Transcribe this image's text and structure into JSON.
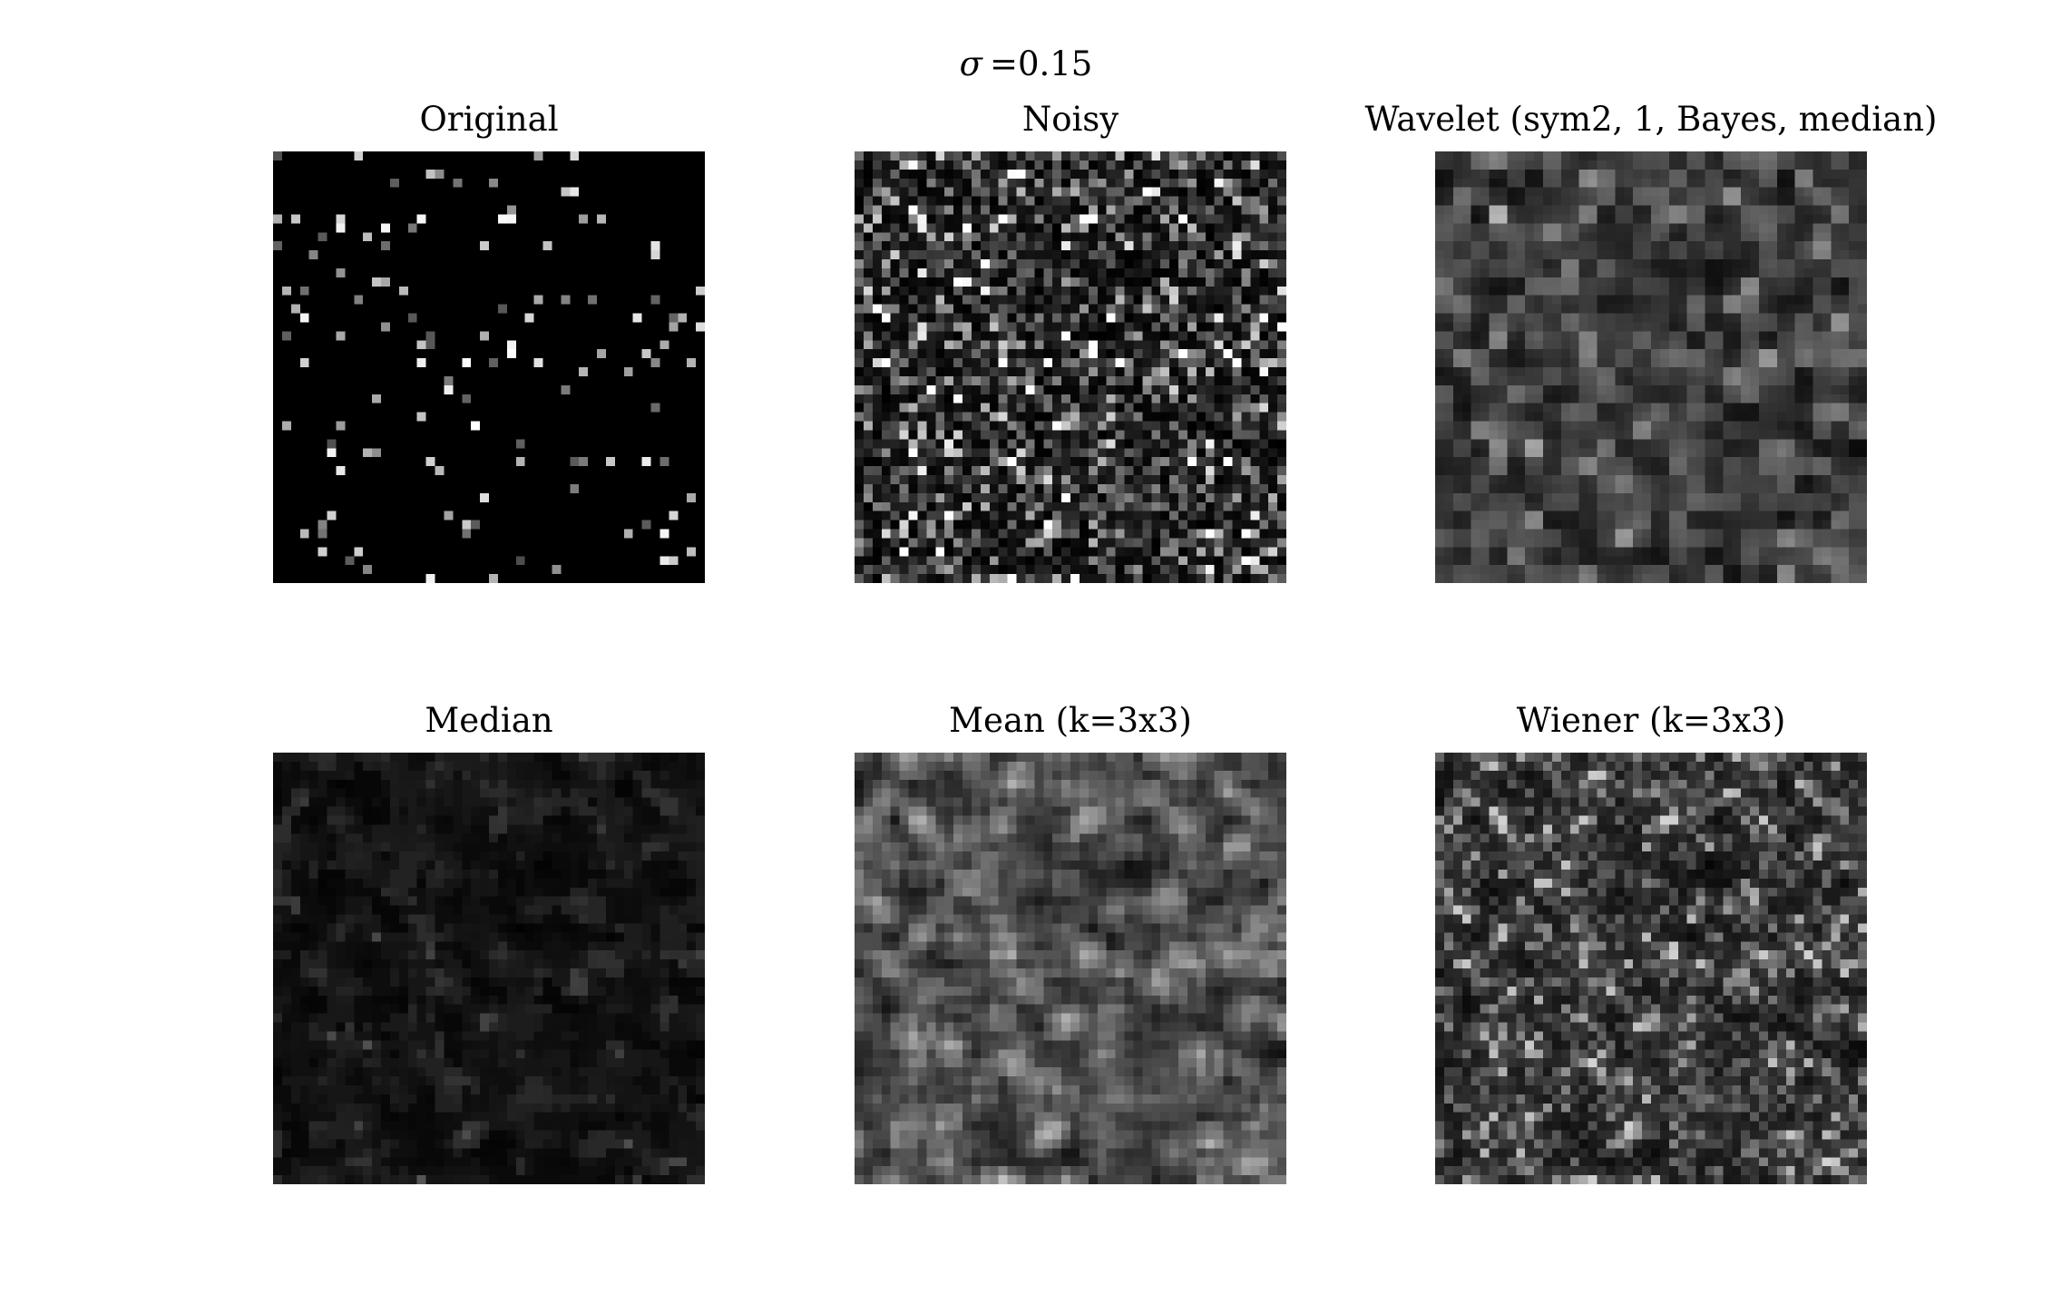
{
  "figure": {
    "suptitle": {
      "symbol": "σ",
      "text": "=0.15"
    },
    "panels": [
      {
        "title": "Original"
      },
      {
        "title": "Noisy"
      },
      {
        "title": "Wavelet (sym2, 1, Bayes, median)"
      },
      {
        "title": "Median"
      },
      {
        "title": "Mean (k=3x3)"
      },
      {
        "title": "Wiener (k=3x3)"
      }
    ]
  }
}
